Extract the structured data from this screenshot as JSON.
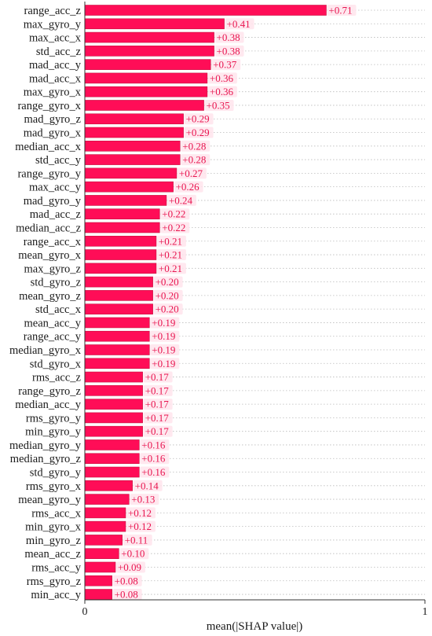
{
  "chart_data": {
    "type": "bar",
    "orientation": "horizontal",
    "xlabel": "mean(|SHAP value|)",
    "xlim": [
      0,
      1
    ],
    "xticks": [
      "0",
      "1"
    ],
    "grid": "horizontal dotted guide lines per bar",
    "colors": {
      "bar": "#ff0d57",
      "bar_edge": "#c8103f",
      "label": "#e8144f",
      "label_bg": "#ffe4ec"
    },
    "categories": [
      "range_acc_z",
      "max_gyro_y",
      "max_acc_x",
      "std_acc_z",
      "mad_acc_y",
      "mad_acc_x",
      "max_gyro_x",
      "range_gyro_x",
      "mad_gyro_z",
      "mad_gyro_x",
      "median_acc_x",
      "std_acc_y",
      "range_gyro_y",
      "max_acc_y",
      "mad_gyro_y",
      "mad_acc_z",
      "median_acc_z",
      "range_acc_x",
      "mean_gyro_x",
      "max_gyro_z",
      "std_gyro_z",
      "mean_gyro_z",
      "std_acc_x",
      "mean_acc_y",
      "range_acc_y",
      "median_gyro_x",
      "std_gyro_x",
      "rms_acc_z",
      "range_gyro_z",
      "median_acc_y",
      "rms_gyro_y",
      "min_gyro_y",
      "median_gyro_y",
      "median_gyro_z",
      "std_gyro_y",
      "rms_gyro_x",
      "mean_gyro_y",
      "rms_acc_x",
      "min_gyro_x",
      "min_gyro_z",
      "mean_acc_z",
      "rms_acc_y",
      "rms_gyro_z",
      "min_acc_y"
    ],
    "values": [
      0.71,
      0.41,
      0.38,
      0.38,
      0.37,
      0.36,
      0.36,
      0.35,
      0.29,
      0.29,
      0.28,
      0.28,
      0.27,
      0.26,
      0.24,
      0.22,
      0.22,
      0.21,
      0.21,
      0.21,
      0.2,
      0.2,
      0.2,
      0.19,
      0.19,
      0.19,
      0.19,
      0.17,
      0.17,
      0.17,
      0.17,
      0.17,
      0.16,
      0.16,
      0.16,
      0.14,
      0.13,
      0.12,
      0.12,
      0.11,
      0.1,
      0.09,
      0.08,
      0.08
    ],
    "value_labels": [
      "+0.71",
      "+0.41",
      "+0.38",
      "+0.38",
      "+0.37",
      "+0.36",
      "+0.36",
      "+0.35",
      "+0.29",
      "+0.29",
      "+0.28",
      "+0.28",
      "+0.27",
      "+0.26",
      "+0.24",
      "+0.22",
      "+0.22",
      "+0.21",
      "+0.21",
      "+0.21",
      "+0.20",
      "+0.20",
      "+0.20",
      "+0.19",
      "+0.19",
      "+0.19",
      "+0.19",
      "+0.17",
      "+0.17",
      "+0.17",
      "+0.17",
      "+0.17",
      "+0.16",
      "+0.16",
      "+0.16",
      "+0.14",
      "+0.13",
      "+0.12",
      "+0.12",
      "+0.11",
      "+0.10",
      "+0.09",
      "+0.08",
      "+0.08"
    ]
  }
}
